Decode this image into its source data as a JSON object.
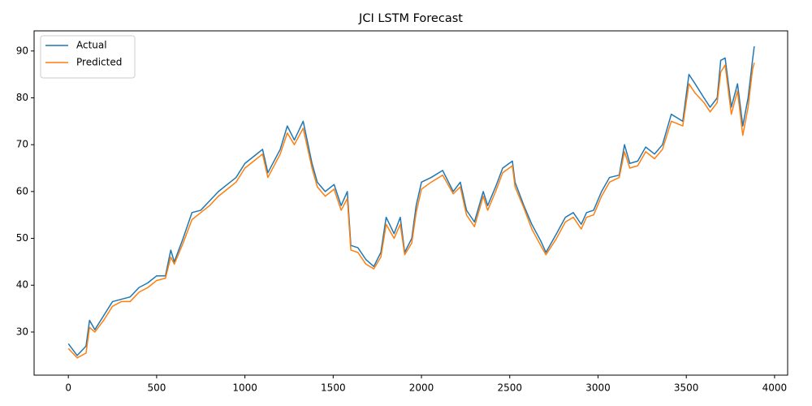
{
  "chart_data": {
    "type": "line",
    "title": "JCI LSTM Forecast",
    "x": [
      0,
      50,
      100,
      120,
      150,
      200,
      250,
      300,
      350,
      400,
      450,
      500,
      550,
      580,
      600,
      650,
      700,
      750,
      800,
      850,
      900,
      950,
      1000,
      1050,
      1100,
      1130,
      1200,
      1240,
      1280,
      1330,
      1380,
      1410,
      1455,
      1505,
      1545,
      1580,
      1600,
      1640,
      1685,
      1730,
      1770,
      1800,
      1845,
      1880,
      1905,
      1945,
      1970,
      2000,
      2055,
      2120,
      2180,
      2220,
      2255,
      2300,
      2350,
      2375,
      2420,
      2460,
      2515,
      2530,
      2580,
      2625,
      2675,
      2705,
      2765,
      2815,
      2860,
      2905,
      2935,
      2975,
      3020,
      3065,
      3120,
      3150,
      3180,
      3225,
      3270,
      3320,
      3365,
      3415,
      3480,
      3515,
      3550,
      3600,
      3635,
      3675,
      3695,
      3720,
      3755,
      3790,
      3820,
      3850,
      3875,
      3885
    ],
    "series": [
      {
        "name": "Actual",
        "color": "#1f77b4",
        "values": [
          27.5,
          25,
          27,
          32.5,
          30.5,
          33.5,
          36.5,
          37,
          37.5,
          39.5,
          40.5,
          42,
          42,
          47.5,
          45,
          50,
          55.5,
          56,
          58,
          60,
          61.5,
          63,
          66,
          67.5,
          69,
          64,
          69,
          74,
          71,
          75,
          66,
          62,
          60,
          61.5,
          57,
          60,
          48.5,
          48,
          45.5,
          44,
          47,
          54.5,
          51,
          54.5,
          47,
          50,
          57,
          62,
          63,
          64.5,
          60,
          62,
          56,
          53.5,
          60,
          57,
          61,
          65,
          66.5,
          62,
          57,
          53,
          49.5,
          47,
          51,
          54.5,
          55.5,
          53,
          55.5,
          56,
          60,
          63,
          63.5,
          70,
          66,
          66.5,
          69.5,
          68,
          70,
          76.5,
          75,
          85,
          83,
          80,
          78,
          80,
          88,
          88.5,
          78,
          83,
          74,
          80,
          88,
          91
        ]
      },
      {
        "name": "Predicted",
        "color": "#ff7f0e",
        "values": [
          26.5,
          24.5,
          25.5,
          31,
          30,
          32.5,
          35.5,
          36.5,
          36.5,
          38.5,
          39.5,
          41,
          41.5,
          46,
          44.5,
          49,
          54,
          55.5,
          57,
          59,
          60.5,
          62,
          65,
          66.5,
          68,
          63,
          68,
          72.5,
          70,
          73.5,
          65,
          61,
          59,
          60.5,
          56,
          58.5,
          47.5,
          47,
          44.5,
          43.5,
          46,
          53,
          50,
          53,
          46.5,
          49,
          55.5,
          60.5,
          62,
          63.5,
          59.5,
          61,
          55,
          52.5,
          59,
          56,
          60,
          64,
          65.5,
          61,
          56.5,
          52,
          48.5,
          46.5,
          50,
          53.5,
          54.5,
          52,
          54.5,
          55,
          59,
          62,
          63,
          68.5,
          65,
          65.5,
          68.5,
          67,
          69,
          75,
          74,
          83,
          81,
          79,
          77,
          79,
          85.5,
          87,
          76.5,
          81.5,
          72,
          78,
          86,
          87.5
        ]
      }
    ],
    "xlim": [
      -194,
      4074
    ],
    "ylim": [
      20.8,
      94.3
    ],
    "xticks": [
      0,
      500,
      1000,
      1500,
      2000,
      2500,
      3000,
      3500,
      4000
    ],
    "yticks": [
      30,
      40,
      50,
      60,
      70,
      80,
      90
    ],
    "grid": false,
    "legend": "upper-left"
  }
}
